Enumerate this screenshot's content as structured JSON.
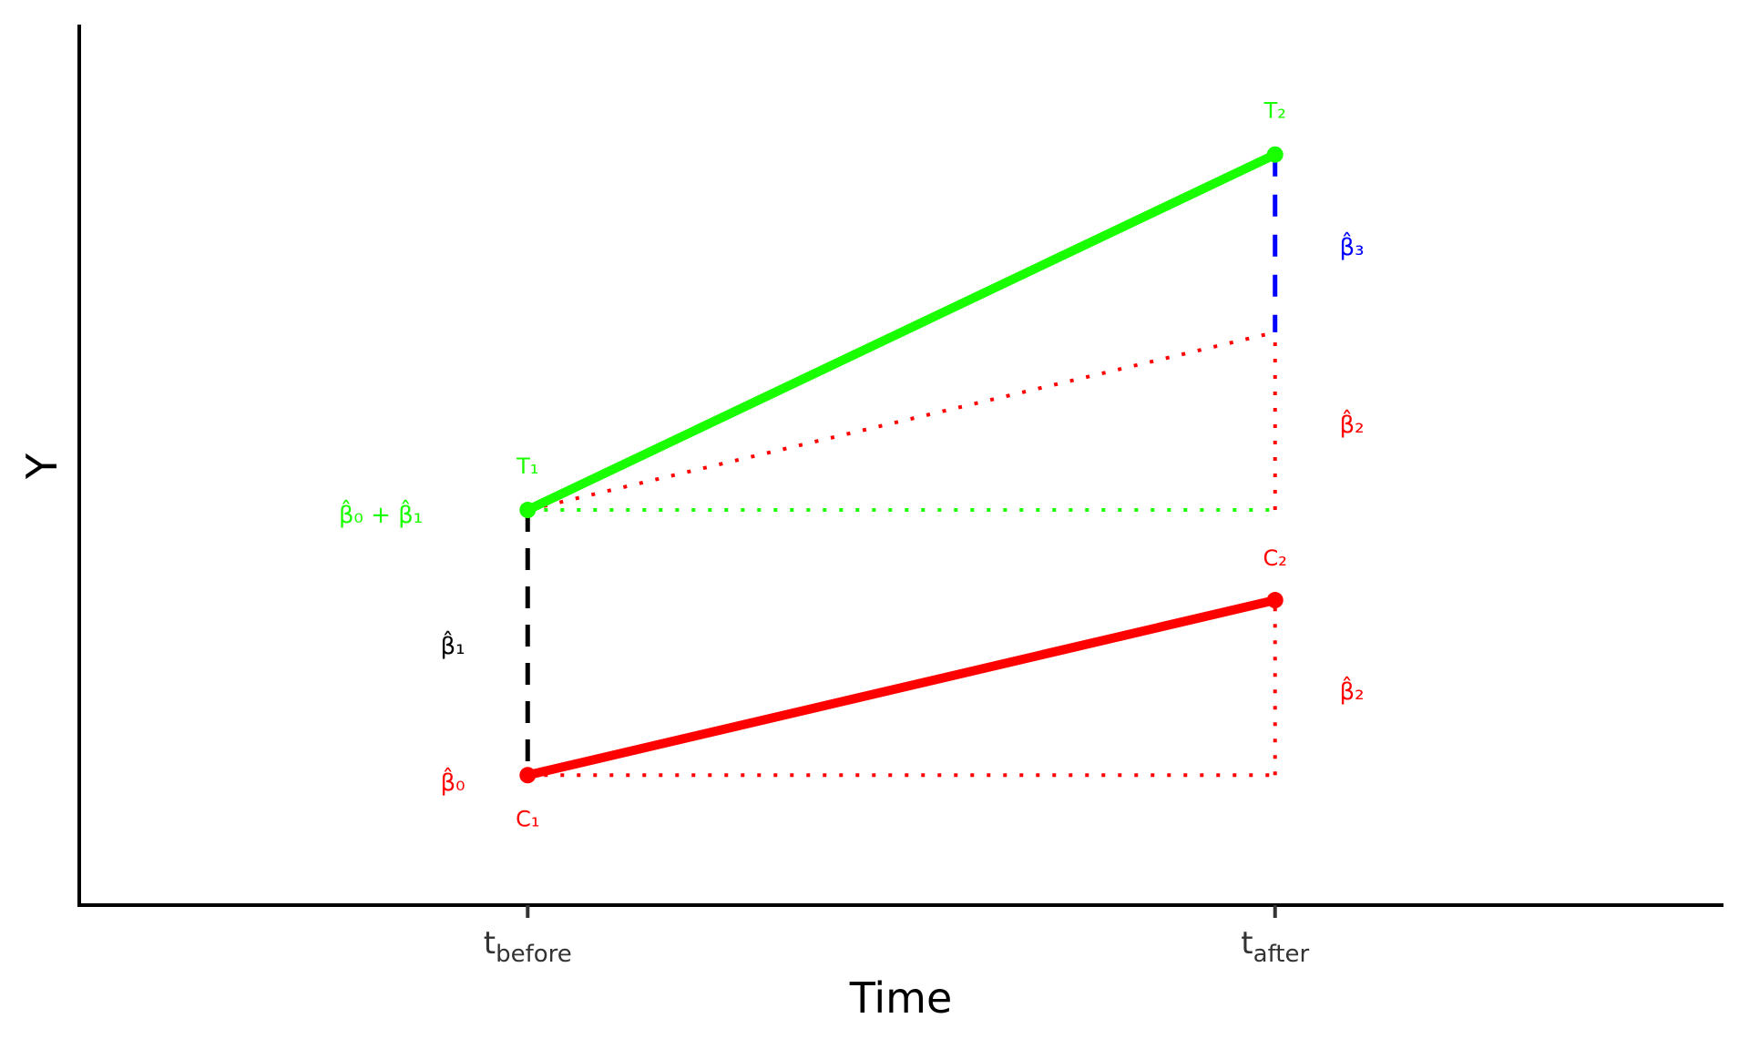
{
  "chart_data": {
    "type": "line",
    "title": "",
    "xlabel": "Time",
    "ylabel": "Y",
    "x_ticks": [
      {
        "value": 0,
        "main": "t",
        "sub": "before"
      },
      {
        "value": 1,
        "main": "t",
        "sub": "after"
      }
    ],
    "xlim": [
      -0.6,
      1.6
    ],
    "ylim": [
      0.51,
      3.83
    ],
    "grid": false,
    "series": [
      {
        "name": "Treatment",
        "color": "#1aff00",
        "x": [
          0,
          1
        ],
        "y": [
          2,
          3.34
        ],
        "point_labels": [
          "T₁",
          "T₂"
        ]
      },
      {
        "name": "Control",
        "color": "#ff0000",
        "x": [
          0,
          1
        ],
        "y": [
          1,
          1.66
        ],
        "point_labels": [
          "C₁",
          "C₂"
        ]
      }
    ],
    "counterfactual": {
      "color": "#ff0000",
      "x": [
        0,
        1
      ],
      "y": [
        2,
        2.67
      ]
    },
    "annotations": [
      {
        "text": "β̂₀ + β̂₁",
        "color": "#1aff00"
      },
      {
        "text": "β̂₁",
        "color": "#000000"
      },
      {
        "text": "β̂₀",
        "color": "#ff0000"
      },
      {
        "text": "β̂₃",
        "color": "#0000ff"
      },
      {
        "text": "β̂₂",
        "color": "#ff0000"
      },
      {
        "text": "β̂₂",
        "color": "#ff0000"
      }
    ]
  }
}
